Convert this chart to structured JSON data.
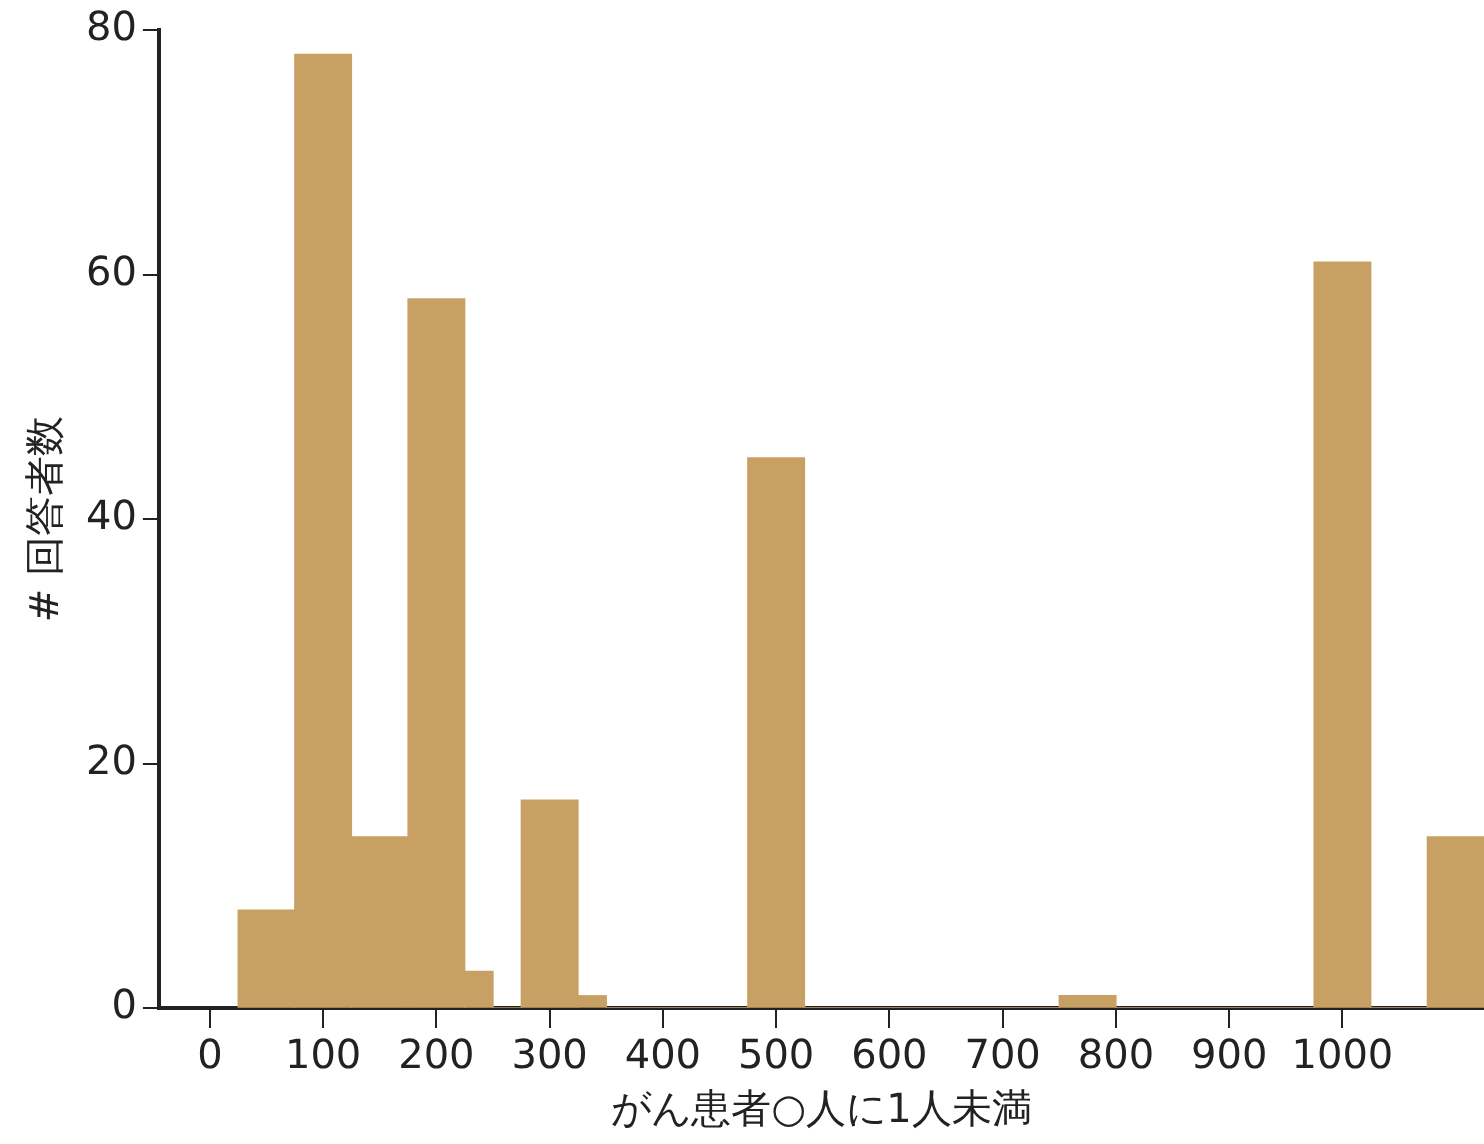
{
  "chart_data": {
    "type": "histogram",
    "xlabel": "がん患者○人に1人未満",
    "ylabel": "# 回答者数",
    "bins": [
      25,
      75,
      125,
      175,
      225,
      250,
      275,
      325,
      350,
      475,
      525,
      750,
      800,
      975,
      1025,
      1075,
      1125
    ],
    "values": [
      8,
      78,
      14,
      58,
      3,
      0,
      17,
      1,
      0,
      45,
      0,
      1,
      0,
      61,
      0,
      14
    ],
    "color": "#c9a063",
    "xlim": [
      -45,
      1125
    ],
    "xticks": [
      0,
      100,
      200,
      300,
      400,
      500,
      600,
      700,
      800,
      900,
      1000
    ],
    "ylim": [
      0,
      80
    ],
    "yticks": [
      0,
      20,
      40,
      60,
      80
    ],
    "grid": false,
    "legend": false
  }
}
